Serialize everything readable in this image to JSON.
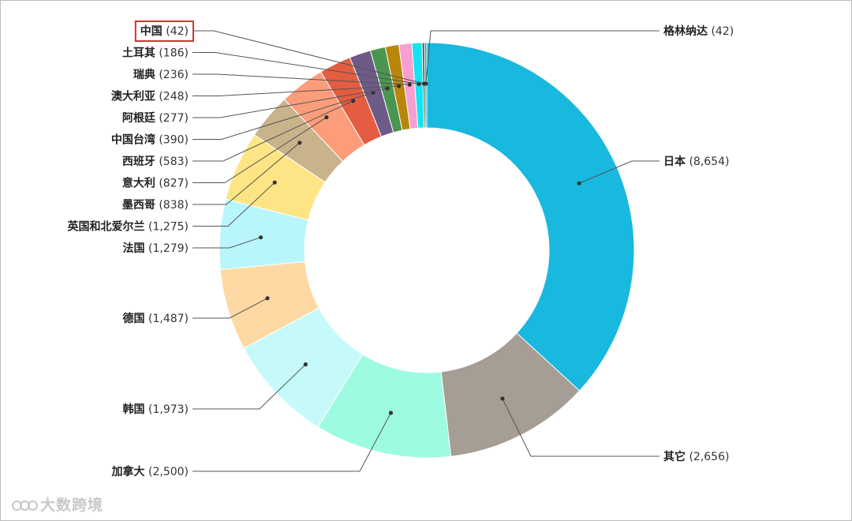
{
  "watermark": {
    "text": "大数跨境"
  },
  "chart_data": {
    "type": "donut",
    "highlight": "中国",
    "highlight_color": "#d2362a",
    "series": [
      {
        "name": "日本",
        "value": 8654,
        "display": "8,654",
        "color": "#19b8df"
      },
      {
        "name": "其它",
        "value": 2656,
        "display": "2,656",
        "color": "#a69d94"
      },
      {
        "name": "加拿大",
        "value": 2500,
        "display": "2,500",
        "color": "#9dfbe1"
      },
      {
        "name": "韩国",
        "value": 1973,
        "display": "1,973",
        "color": "#c6fafa"
      },
      {
        "name": "德国",
        "value": 1487,
        "display": "1,487",
        "color": "#fed9a3"
      },
      {
        "name": "法国",
        "value": 1279,
        "display": "1,279",
        "color": "#b9f6fb"
      },
      {
        "name": "英国和北爱尔兰",
        "value": 1275,
        "display": "1,275",
        "color": "#fde585"
      },
      {
        "name": "墨西哥",
        "value": 838,
        "display": "838",
        "color": "#c9b38b"
      },
      {
        "name": "意大利",
        "value": 827,
        "display": "827",
        "color": "#fb9c7a"
      },
      {
        "name": "西班牙",
        "value": 583,
        "display": "583",
        "color": "#e45c41"
      },
      {
        "name": "中国台湾",
        "value": 390,
        "display": "390",
        "color": "#6d5a87"
      },
      {
        "name": "阿根廷",
        "value": 277,
        "display": "277",
        "color": "#4a9650"
      },
      {
        "name": "澳大利亚",
        "value": 248,
        "display": "248",
        "color": "#b8860b"
      },
      {
        "name": "瑞典",
        "value": 236,
        "display": "236",
        "color": "#f79fd0"
      },
      {
        "name": "土耳其",
        "value": 186,
        "display": "186",
        "color": "#14e3f2"
      },
      {
        "name": "中国",
        "value": 42,
        "display": "42",
        "color": "#2f5c2a"
      },
      {
        "name": "格林纳达",
        "value": 42,
        "display": "42",
        "color": "#2aa7c4"
      }
    ]
  }
}
